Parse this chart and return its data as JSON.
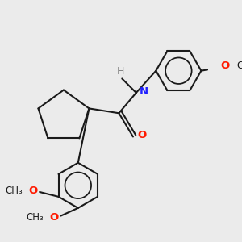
{
  "bg_color": "#ebebeb",
  "bond_color": "#1a1a1a",
  "N_color": "#2020ff",
  "O_color": "#ff1a00",
  "H_color": "#808080",
  "lw": 1.5,
  "figsize": [
    3.0,
    3.0
  ],
  "dpi": 100,
  "xlim": [
    -2.8,
    3.8
  ],
  "ylim": [
    -4.0,
    3.2
  ],
  "font_size": 9.5,
  "font_size_small": 8.5
}
